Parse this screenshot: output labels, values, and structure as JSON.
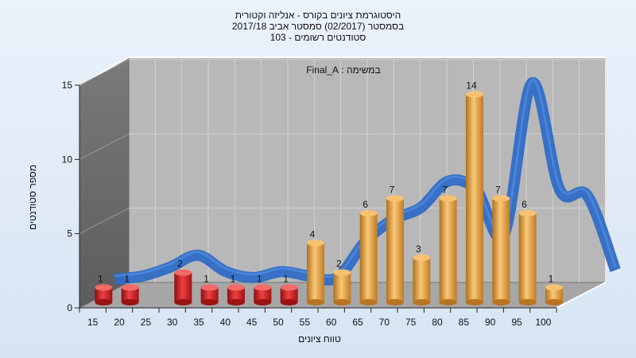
{
  "chart_data": {
    "type": "bar",
    "title_lines": [
      "היסטוגרמת ציונים בקורס - אנליזה וקטורית",
      "בסמסטר  (02/2017)  סמסטר אביב 2017/18",
      "סטודנטים רשומים - 103"
    ],
    "subtitle": "במשימה : Final_A",
    "xlabel": "טווח ציונים",
    "ylabel": "מספר סטודנטים",
    "categories": [
      "15",
      "20",
      "25",
      "30",
      "35",
      "40",
      "45",
      "50",
      "55",
      "60",
      "65",
      "70",
      "75",
      "80",
      "85",
      "90",
      "95",
      "100"
    ],
    "values": [
      1,
      1,
      0,
      2,
      1,
      1,
      1,
      1,
      4,
      2,
      6,
      7,
      3,
      7,
      14,
      7,
      6,
      1
    ],
    "y_ticks": [
      0,
      5,
      10,
      15
    ],
    "ylim": [
      0,
      15
    ],
    "pass_threshold": 55,
    "trend": [
      1,
      1.2,
      1.8,
      2.6,
      1.5,
      1.1,
      1.5,
      1.2,
      1.1,
      3.5,
      5.0,
      5.8,
      7.6,
      7.0,
      4.0,
      14.2,
      7.0,
      6.6,
      1.6
    ],
    "colors": {
      "fail_bar": "#d92323",
      "pass_bar": "#e8a23c",
      "trend": "#2f6cc4",
      "wall_back": "#b8b8b8",
      "wall_side": "#8a8a8a",
      "floor": "#a6a6a6"
    },
    "grid": true
  }
}
